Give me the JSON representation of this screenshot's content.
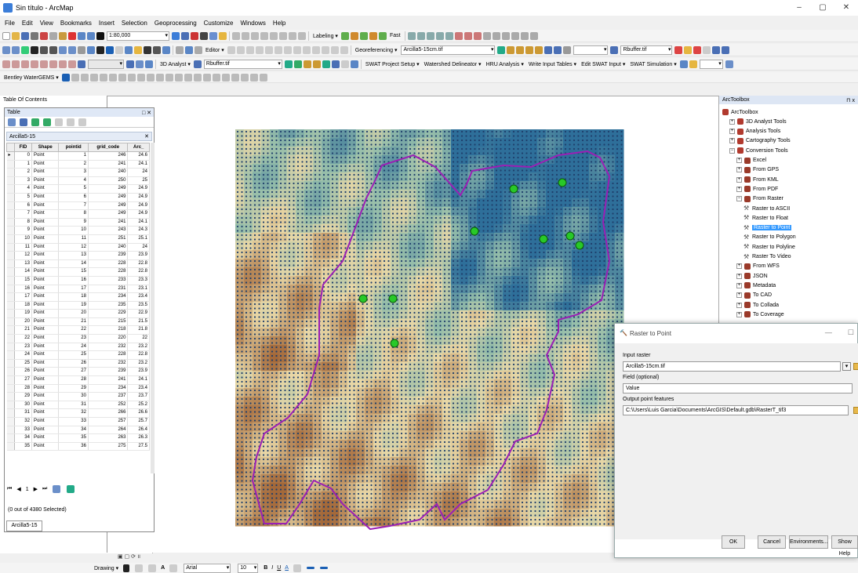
{
  "window": {
    "title": "Sin título - ArcMap",
    "controls": [
      "–",
      "▢",
      "✕"
    ]
  },
  "menu": [
    "File",
    "Edit",
    "View",
    "Bookmarks",
    "Insert",
    "Selection",
    "Geoprocessing",
    "Customize",
    "Windows",
    "Help"
  ],
  "toolbars": {
    "scale": "1:80,000",
    "labeling": "Labeling ▾",
    "fast": "Fast",
    "editor": "Editor ▾",
    "georeferencing": "Georeferencing ▾",
    "geo_layer": "Arcilla5-15cm.tif",
    "rbuffer1": "Rbuffer.tif",
    "analyst3d": "3D Analyst ▾",
    "rbuffer2": "Rbuffer.tif",
    "swat_items": [
      "SWAT Project Setup ▾",
      "Watershed Delineator ▾",
      "HRU Analysis ▾",
      "Write Input Tables ▾",
      "Edit SWAT Input ▾",
      "SWAT Simulation ▾"
    ],
    "bentley": "Bentley WaterGEMS ▾"
  },
  "toc": {
    "title": "Table Of Contents",
    "pin": "⊓ x"
  },
  "table": {
    "title": "Table",
    "layer": "Arcilla5-15",
    "columns": [
      "FID",
      "Shape",
      "pointid",
      "grid_code",
      "Arc_"
    ],
    "rows": [
      [
        "0",
        "Point",
        "1",
        "246",
        "24.6"
      ],
      [
        "1",
        "Point",
        "2",
        "241",
        "24.1"
      ],
      [
        "2",
        "Point",
        "3",
        "240",
        "24"
      ],
      [
        "3",
        "Point",
        "4",
        "250",
        "25"
      ],
      [
        "4",
        "Point",
        "5",
        "249",
        "24.9"
      ],
      [
        "5",
        "Point",
        "6",
        "249",
        "24.9"
      ],
      [
        "6",
        "Point",
        "7",
        "249",
        "24.9"
      ],
      [
        "7",
        "Point",
        "8",
        "249",
        "24.9"
      ],
      [
        "8",
        "Point",
        "9",
        "241",
        "24.1"
      ],
      [
        "9",
        "Point",
        "10",
        "243",
        "24.3"
      ],
      [
        "10",
        "Point",
        "11",
        "251",
        "25.1"
      ],
      [
        "11",
        "Point",
        "12",
        "240",
        "24"
      ],
      [
        "12",
        "Point",
        "13",
        "239",
        "23.9"
      ],
      [
        "13",
        "Point",
        "14",
        "228",
        "22.8"
      ],
      [
        "14",
        "Point",
        "15",
        "228",
        "22.8"
      ],
      [
        "15",
        "Point",
        "16",
        "233",
        "23.3"
      ],
      [
        "16",
        "Point",
        "17",
        "231",
        "23.1"
      ],
      [
        "17",
        "Point",
        "18",
        "234",
        "23.4"
      ],
      [
        "18",
        "Point",
        "19",
        "235",
        "23.5"
      ],
      [
        "19",
        "Point",
        "20",
        "229",
        "22.9"
      ],
      [
        "20",
        "Point",
        "21",
        "215",
        "21.5"
      ],
      [
        "21",
        "Point",
        "22",
        "218",
        "21.8"
      ],
      [
        "22",
        "Point",
        "23",
        "220",
        "22"
      ],
      [
        "23",
        "Point",
        "24",
        "232",
        "23.2"
      ],
      [
        "24",
        "Point",
        "25",
        "228",
        "22.8"
      ],
      [
        "25",
        "Point",
        "26",
        "232",
        "23.2"
      ],
      [
        "26",
        "Point",
        "27",
        "239",
        "23.9"
      ],
      [
        "27",
        "Point",
        "28",
        "241",
        "24.1"
      ],
      [
        "28",
        "Point",
        "29",
        "234",
        "23.4"
      ],
      [
        "29",
        "Point",
        "30",
        "237",
        "23.7"
      ],
      [
        "30",
        "Point",
        "31",
        "252",
        "25.2"
      ],
      [
        "31",
        "Point",
        "32",
        "266",
        "26.6"
      ],
      [
        "32",
        "Point",
        "33",
        "257",
        "25.7"
      ],
      [
        "33",
        "Point",
        "34",
        "264",
        "26.4"
      ],
      [
        "34",
        "Point",
        "35",
        "263",
        "26.3"
      ],
      [
        "35",
        "Point",
        "36",
        "275",
        "27.5"
      ]
    ],
    "record_nav": "1",
    "selection": "(0 out of 4380 Selected)",
    "tab": "Arcilla5-15"
  },
  "toolbox": {
    "title": "ArcToolbox",
    "pin": "⊓ x",
    "items": [
      {
        "label": "ArcToolbox",
        "level": 0,
        "kind": "root"
      },
      {
        "label": "3D Analyst Tools",
        "level": 1,
        "kind": "box"
      },
      {
        "label": "Analysis Tools",
        "level": 1,
        "kind": "box"
      },
      {
        "label": "Cartography Tools",
        "level": 1,
        "kind": "box"
      },
      {
        "label": "Conversion Tools",
        "level": 1,
        "kind": "box"
      },
      {
        "label": "Excel",
        "level": 2,
        "kind": "box"
      },
      {
        "label": "From GPS",
        "level": 2,
        "kind": "box"
      },
      {
        "label": "From KML",
        "level": 2,
        "kind": "box"
      },
      {
        "label": "From PDF",
        "level": 2,
        "kind": "box"
      },
      {
        "label": "From Raster",
        "level": 2,
        "kind": "box"
      },
      {
        "label": "Raster to ASCII",
        "level": 3,
        "kind": "tool"
      },
      {
        "label": "Raster to Float",
        "level": 3,
        "kind": "tool"
      },
      {
        "label": "Raster to Point",
        "level": 3,
        "kind": "tool",
        "selected": true
      },
      {
        "label": "Raster to Polygon",
        "level": 3,
        "kind": "tool"
      },
      {
        "label": "Raster to Polyline",
        "level": 3,
        "kind": "tool"
      },
      {
        "label": "Raster To Video",
        "level": 3,
        "kind": "tool"
      },
      {
        "label": "From WFS",
        "level": 2,
        "kind": "box"
      },
      {
        "label": "JSON",
        "level": 2,
        "kind": "box"
      },
      {
        "label": "Metadata",
        "level": 2,
        "kind": "box"
      },
      {
        "label": "To CAD",
        "level": 2,
        "kind": "box"
      },
      {
        "label": "To Collada",
        "level": 2,
        "kind": "box"
      },
      {
        "label": "To Coverage",
        "level": 2,
        "kind": "box"
      }
    ]
  },
  "dialog": {
    "title": "Raster to Point",
    "input_raster_label": "Input raster",
    "input_raster": "Arcilla5-15cm.tif",
    "field_label": "Field (optional)",
    "field_value": "Value",
    "output_label": "Output point features",
    "output_value": "C:\\Users\\Luis Garcia\\Documents\\ArcGIS\\Default.gdb\\RasterT_tif3",
    "buttons": {
      "ok": "OK",
      "cancel": "Cancel",
      "environments": "Environments...",
      "show_help": "Show Help"
    }
  },
  "drawing": {
    "label": "Drawing ▾",
    "font": "Arial",
    "size": "10"
  },
  "colors": {
    "raster_blue": "#2e6f9a",
    "raster_tan": "#e8d7a6",
    "raster_brown": "#a4693a",
    "boundary": "#9b1fb5",
    "dots": "#1f3f6b",
    "sample": "#28c828",
    "selection": "#3399ff"
  }
}
